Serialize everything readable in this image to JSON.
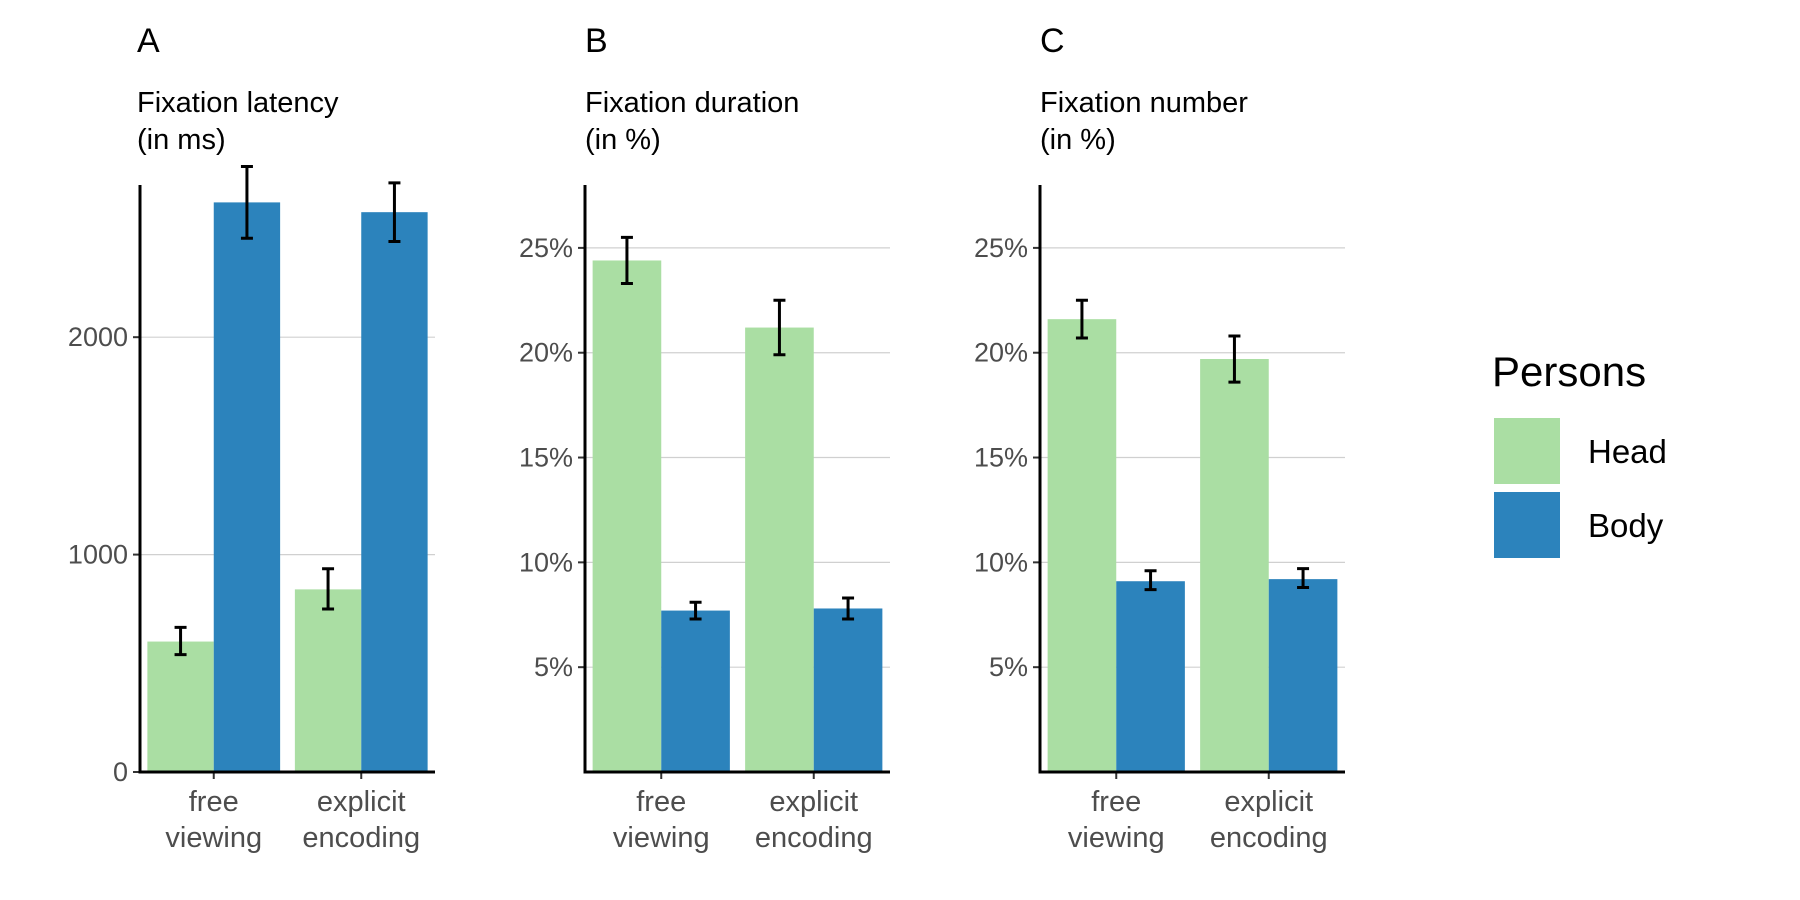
{
  "colors": {
    "Head": "#aadea3",
    "Body": "#2c83bc"
  },
  "legend": {
    "title": "Persons",
    "position": "right",
    "labels": [
      "Head",
      "Body"
    ]
  },
  "chart_data": [
    {
      "type": "bar",
      "panel": "A",
      "title": [
        "Fixation latency",
        "(in ms)"
      ],
      "categories": [
        [
          "free",
          "viewing"
        ],
        [
          "explicit",
          "encoding"
        ]
      ],
      "ylim": [
        0,
        2700
      ],
      "yticks": [
        0,
        1000,
        2000
      ],
      "ytick_labels": [
        "0",
        "1000",
        "2000"
      ],
      "series": [
        {
          "name": "Head",
          "values": [
            600,
            840
          ],
          "err_low": [
            540,
            750
          ],
          "err_high": [
            665,
            935
          ]
        },
        {
          "name": "Body",
          "values": [
            2620,
            2575
          ],
          "err_low": [
            2455,
            2440
          ],
          "err_high": [
            2785,
            2710
          ]
        }
      ]
    },
    {
      "type": "bar",
      "panel": "B",
      "title": [
        "Fixation duration",
        "(in %)"
      ],
      "categories": [
        [
          "free",
          "viewing"
        ],
        [
          "explicit",
          "encoding"
        ]
      ],
      "ylim": [
        0,
        0.28
      ],
      "yticks": [
        0.05,
        0.1,
        0.15,
        0.2,
        0.25
      ],
      "ytick_labels": [
        "5%",
        "10%",
        "15%",
        "20%",
        "25%"
      ],
      "series": [
        {
          "name": "Head",
          "values": [
            0.244,
            0.212
          ],
          "err_low": [
            0.233,
            0.199
          ],
          "err_high": [
            0.255,
            0.225
          ]
        },
        {
          "name": "Body",
          "values": [
            0.077,
            0.078
          ],
          "err_low": [
            0.073,
            0.073
          ],
          "err_high": [
            0.081,
            0.083
          ]
        }
      ]
    },
    {
      "type": "bar",
      "panel": "C",
      "title": [
        "Fixation number",
        "(in %)"
      ],
      "categories": [
        [
          "free",
          "viewing"
        ],
        [
          "explicit",
          "encoding"
        ]
      ],
      "ylim": [
        0,
        0.28
      ],
      "yticks": [
        0.05,
        0.1,
        0.15,
        0.2,
        0.25
      ],
      "ytick_labels": [
        "5%",
        "10%",
        "15%",
        "20%",
        "25%"
      ],
      "series": [
        {
          "name": "Head",
          "values": [
            0.216,
            0.197
          ],
          "err_low": [
            0.207,
            0.186
          ],
          "err_high": [
            0.225,
            0.208
          ]
        },
        {
          "name": "Body",
          "values": [
            0.091,
            0.092
          ],
          "err_low": [
            0.087,
            0.088
          ],
          "err_high": [
            0.096,
            0.097
          ]
        }
      ]
    }
  ]
}
